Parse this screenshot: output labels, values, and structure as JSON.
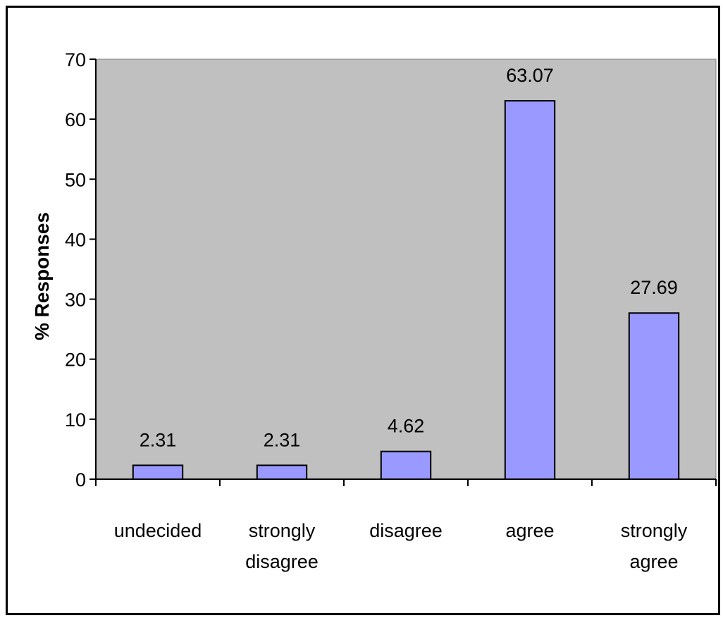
{
  "chart_data": {
    "type": "bar",
    "title": "",
    "xlabel": "",
    "ylabel": "% Responses",
    "ylim": [
      0,
      70
    ],
    "yticks": [
      0,
      10,
      20,
      30,
      40,
      50,
      60,
      70
    ],
    "grid": false,
    "legend": "none",
    "categories": [
      [
        "undecided"
      ],
      [
        "strongly",
        "disagree"
      ],
      [
        "disagree"
      ],
      [
        "agree"
      ],
      [
        "strongly",
        "agree"
      ]
    ],
    "values": [
      2.31,
      2.31,
      4.62,
      63.07,
      27.69
    ],
    "data_labels": [
      "2.31",
      "2.31",
      "4.62",
      "63.07",
      "27.69"
    ],
    "colors": {
      "bar_fill": "#9999ff",
      "plot_background": "#c0c0c0",
      "axis": "#000000"
    }
  }
}
